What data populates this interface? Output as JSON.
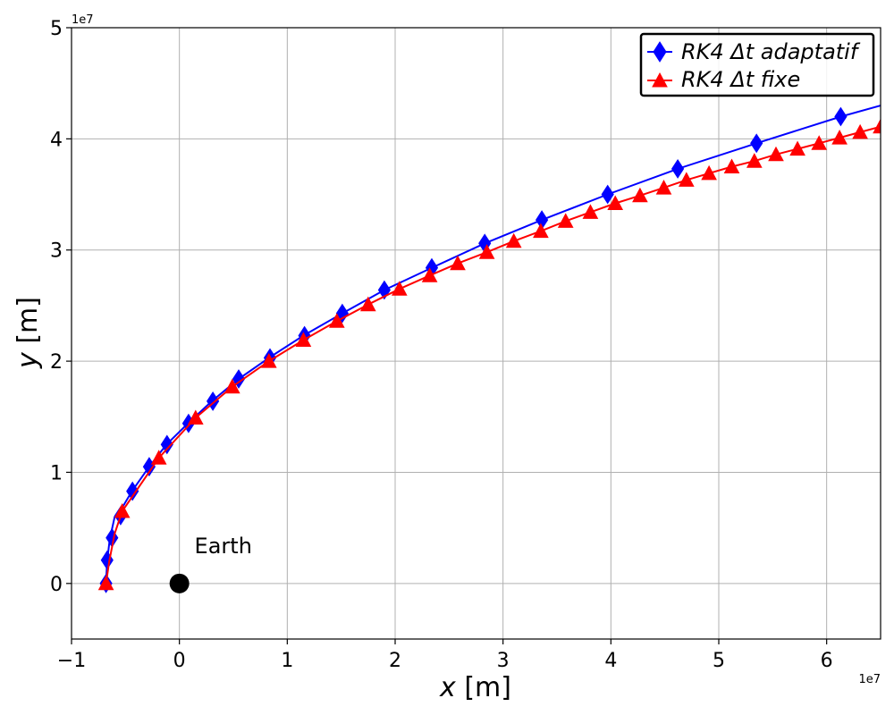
{
  "chart_data": {
    "type": "line",
    "xlabel_var": "x",
    "xlabel_unit": " [m]",
    "ylabel_var": "y",
    "ylabel_unit": " [m]",
    "x_offset": "1e7",
    "y_offset": "1e7",
    "xlim": [
      -1.0,
      6.5
    ],
    "ylim": [
      -0.5,
      5.0
    ],
    "x_ticks": [
      -1,
      0,
      1,
      2,
      3,
      4,
      5,
      6
    ],
    "x_tick_labels": [
      "−1",
      "0",
      "1",
      "2",
      "3",
      "4",
      "5",
      "6"
    ],
    "y_ticks": [
      0,
      1,
      2,
      3,
      4,
      5
    ],
    "y_tick_labels": [
      "0",
      "1",
      "2",
      "3",
      "4",
      "5"
    ],
    "grid": true,
    "legend_position": "top-right",
    "annotations": [
      {
        "text": "Earth",
        "x": 0.14,
        "y": 0.27
      }
    ],
    "earth_point": {
      "x": 0.0,
      "y": 0.0
    },
    "series": [
      {
        "name": "RK4 Δt adaptatif",
        "color": "#0000ff",
        "marker": "diamond",
        "line_x": [
          -0.68,
          -0.67,
          -0.645,
          -0.6,
          -0.55,
          -0.44,
          -0.28,
          -0.12,
          0.08,
          0.3,
          0.55,
          0.83,
          1.15,
          1.51,
          1.9,
          2.34,
          2.83,
          3.36,
          3.97,
          4.62,
          5.35,
          6.13,
          6.5
        ],
        "line_y": [
          0.0,
          0.2,
          0.4,
          0.6,
          0.65,
          0.83,
          1.05,
          1.25,
          1.44,
          1.64,
          1.84,
          2.03,
          2.23,
          2.43,
          2.64,
          2.84,
          3.06,
          3.27,
          3.5,
          3.73,
          3.96,
          4.2,
          4.3
        ],
        "marker_x": [
          -0.68,
          -0.67,
          -0.625,
          -0.545,
          -0.435,
          -0.28,
          -0.115,
          0.085,
          0.31,
          0.55,
          0.84,
          1.16,
          1.51,
          1.9,
          2.34,
          2.83,
          3.36,
          3.97,
          4.62,
          5.35,
          6.13
        ],
        "marker_y": [
          0.0,
          0.21,
          0.41,
          0.61,
          0.83,
          1.05,
          1.25,
          1.44,
          1.64,
          1.84,
          2.03,
          2.23,
          2.43,
          2.64,
          2.84,
          3.06,
          3.27,
          3.5,
          3.73,
          3.96,
          4.2
        ]
      },
      {
        "name": "RK4 Δt fixe",
        "color": "#ff0000",
        "marker": "triangle",
        "line_x": [
          -0.68,
          -0.65,
          -0.6,
          -0.53,
          -0.19,
          0.15,
          0.49,
          0.83,
          1.15,
          1.46,
          1.75,
          2.04,
          2.32,
          2.58,
          2.85,
          3.1,
          3.35,
          3.58,
          3.81,
          4.04,
          4.27,
          4.49,
          4.7,
          4.91,
          5.12,
          5.33,
          5.53,
          5.73,
          5.93,
          6.12,
          6.31,
          6.5
        ],
        "line_y": [
          0.0,
          0.2,
          0.45,
          0.65,
          1.13,
          1.49,
          1.77,
          2.0,
          2.19,
          2.36,
          2.51,
          2.65,
          2.77,
          2.88,
          2.98,
          3.08,
          3.17,
          3.26,
          3.34,
          3.42,
          3.49,
          3.56,
          3.63,
          3.69,
          3.75,
          3.8,
          3.86,
          3.91,
          3.96,
          4.01,
          4.06,
          4.11
        ],
        "marker_x": [
          -0.68,
          -0.53,
          -0.19,
          0.15,
          0.49,
          0.83,
          1.15,
          1.46,
          1.75,
          2.04,
          2.32,
          2.58,
          2.85,
          3.1,
          3.35,
          3.58,
          3.81,
          4.04,
          4.27,
          4.49,
          4.7,
          4.91,
          5.12,
          5.33,
          5.53,
          5.73,
          5.93,
          6.12,
          6.31,
          6.5
        ],
        "marker_y": [
          0.0,
          0.65,
          1.13,
          1.49,
          1.77,
          2.0,
          2.19,
          2.36,
          2.51,
          2.65,
          2.77,
          2.88,
          2.98,
          3.08,
          3.17,
          3.26,
          3.34,
          3.42,
          3.49,
          3.56,
          3.63,
          3.69,
          3.75,
          3.8,
          3.86,
          3.91,
          3.96,
          4.01,
          4.06,
          4.11
        ]
      }
    ]
  }
}
